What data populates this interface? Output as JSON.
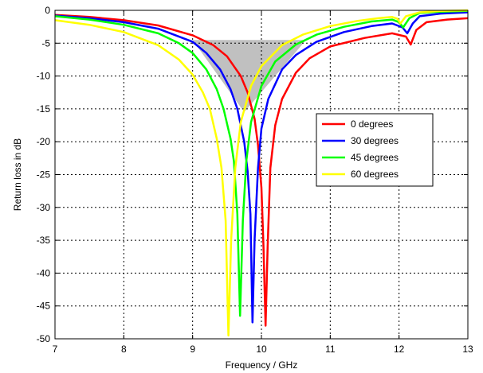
{
  "chart_data": {
    "type": "line",
    "title": "",
    "xlabel": "Frequency / GHz",
    "ylabel": "Return loss in dB",
    "xlim": [
      7,
      13
    ],
    "ylim": [
      -50,
      0
    ],
    "xticks": [
      7,
      8,
      9,
      10,
      11,
      12,
      13
    ],
    "yticks": [
      0,
      -5,
      -10,
      -15,
      -20,
      -25,
      -30,
      -35,
      -40,
      -45,
      -50
    ],
    "grid": true,
    "legend_position": "right",
    "shaded_region": {
      "color": "#c0c0c0",
      "polygon": [
        [
          9.0,
          -4.5
        ],
        [
          10.65,
          -4.5
        ],
        [
          9.75,
          -15.5
        ]
      ]
    },
    "series": [
      {
        "name": "0 degrees",
        "color": "#ff0000",
        "points": [
          [
            7.0,
            -0.7
          ],
          [
            7.5,
            -1.0
          ],
          [
            8.0,
            -1.5
          ],
          [
            8.5,
            -2.3
          ],
          [
            9.0,
            -3.8
          ],
          [
            9.3,
            -5.3
          ],
          [
            9.5,
            -7.0
          ],
          [
            9.7,
            -10.0
          ],
          [
            9.8,
            -12.5
          ],
          [
            9.9,
            -16.5
          ],
          [
            9.95,
            -20.5
          ],
          [
            10.0,
            -27.0
          ],
          [
            10.03,
            -36.0
          ],
          [
            10.06,
            -48.0
          ],
          [
            10.09,
            -36.0
          ],
          [
            10.13,
            -24.0
          ],
          [
            10.2,
            -17.5
          ],
          [
            10.3,
            -13.5
          ],
          [
            10.5,
            -9.5
          ],
          [
            10.7,
            -7.3
          ],
          [
            11.0,
            -5.5
          ],
          [
            11.5,
            -4.2
          ],
          [
            11.9,
            -3.5
          ],
          [
            12.1,
            -4.0
          ],
          [
            12.17,
            -5.2
          ],
          [
            12.25,
            -3.0
          ],
          [
            12.4,
            -1.8
          ],
          [
            12.7,
            -1.4
          ],
          [
            13.0,
            -1.2
          ]
        ]
      },
      {
        "name": "30 degrees",
        "color": "#0000ff",
        "points": [
          [
            7.0,
            -0.8
          ],
          [
            7.5,
            -1.2
          ],
          [
            8.0,
            -1.8
          ],
          [
            8.5,
            -2.8
          ],
          [
            9.0,
            -4.8
          ],
          [
            9.2,
            -6.5
          ],
          [
            9.4,
            -9.0
          ],
          [
            9.55,
            -12.0
          ],
          [
            9.65,
            -15.0
          ],
          [
            9.75,
            -20.0
          ],
          [
            9.8,
            -24.5
          ],
          [
            9.84,
            -31.0
          ],
          [
            9.87,
            -47.5
          ],
          [
            9.9,
            -35.0
          ],
          [
            9.95,
            -24.0
          ],
          [
            10.0,
            -18.0
          ],
          [
            10.1,
            -13.5
          ],
          [
            10.3,
            -9.0
          ],
          [
            10.5,
            -6.8
          ],
          [
            10.8,
            -4.8
          ],
          [
            11.2,
            -3.3
          ],
          [
            11.6,
            -2.4
          ],
          [
            11.9,
            -2.0
          ],
          [
            12.05,
            -2.6
          ],
          [
            12.12,
            -3.5
          ],
          [
            12.2,
            -2.0
          ],
          [
            12.3,
            -0.9
          ],
          [
            12.6,
            -0.5
          ],
          [
            13.0,
            -0.3
          ]
        ]
      },
      {
        "name": "45 degrees",
        "color": "#00ff00",
        "points": [
          [
            7.0,
            -0.9
          ],
          [
            7.5,
            -1.4
          ],
          [
            8.0,
            -2.2
          ],
          [
            8.5,
            -3.5
          ],
          [
            8.8,
            -5.0
          ],
          [
            9.0,
            -6.5
          ],
          [
            9.2,
            -9.0
          ],
          [
            9.35,
            -12.0
          ],
          [
            9.45,
            -15.0
          ],
          [
            9.55,
            -19.5
          ],
          [
            9.6,
            -23.0
          ],
          [
            9.65,
            -31.0
          ],
          [
            9.69,
            -46.5
          ],
          [
            9.73,
            -32.0
          ],
          [
            9.78,
            -23.0
          ],
          [
            9.85,
            -17.0
          ],
          [
            10.0,
            -11.5
          ],
          [
            10.2,
            -7.8
          ],
          [
            10.5,
            -5.2
          ],
          [
            10.8,
            -3.7
          ],
          [
            11.2,
            -2.5
          ],
          [
            11.6,
            -1.7
          ],
          [
            11.9,
            -1.4
          ],
          [
            12.0,
            -1.8
          ],
          [
            12.06,
            -2.6
          ],
          [
            12.15,
            -1.2
          ],
          [
            12.3,
            -0.4
          ],
          [
            12.6,
            -0.2
          ],
          [
            13.0,
            -0.1
          ]
        ]
      },
      {
        "name": "60 degrees",
        "color": "#ffff00",
        "points": [
          [
            7.0,
            -1.5
          ],
          [
            7.5,
            -2.2
          ],
          [
            8.0,
            -3.3
          ],
          [
            8.5,
            -5.3
          ],
          [
            8.8,
            -7.5
          ],
          [
            9.0,
            -9.8
          ],
          [
            9.15,
            -12.5
          ],
          [
            9.25,
            -15.0
          ],
          [
            9.35,
            -19.5
          ],
          [
            9.42,
            -24.0
          ],
          [
            9.48,
            -32.0
          ],
          [
            9.52,
            -49.5
          ],
          [
            9.56,
            -35.0
          ],
          [
            9.62,
            -24.0
          ],
          [
            9.7,
            -17.0
          ],
          [
            9.85,
            -11.5
          ],
          [
            10.0,
            -8.5
          ],
          [
            10.3,
            -5.3
          ],
          [
            10.6,
            -3.7
          ],
          [
            11.0,
            -2.4
          ],
          [
            11.4,
            -1.6
          ],
          [
            11.7,
            -1.2
          ],
          [
            11.9,
            -1.0
          ],
          [
            11.98,
            -1.3
          ],
          [
            12.02,
            -2.0
          ],
          [
            12.1,
            -0.9
          ],
          [
            12.3,
            -0.3
          ],
          [
            12.6,
            -0.1
          ],
          [
            13.0,
            0.0
          ]
        ]
      }
    ]
  }
}
